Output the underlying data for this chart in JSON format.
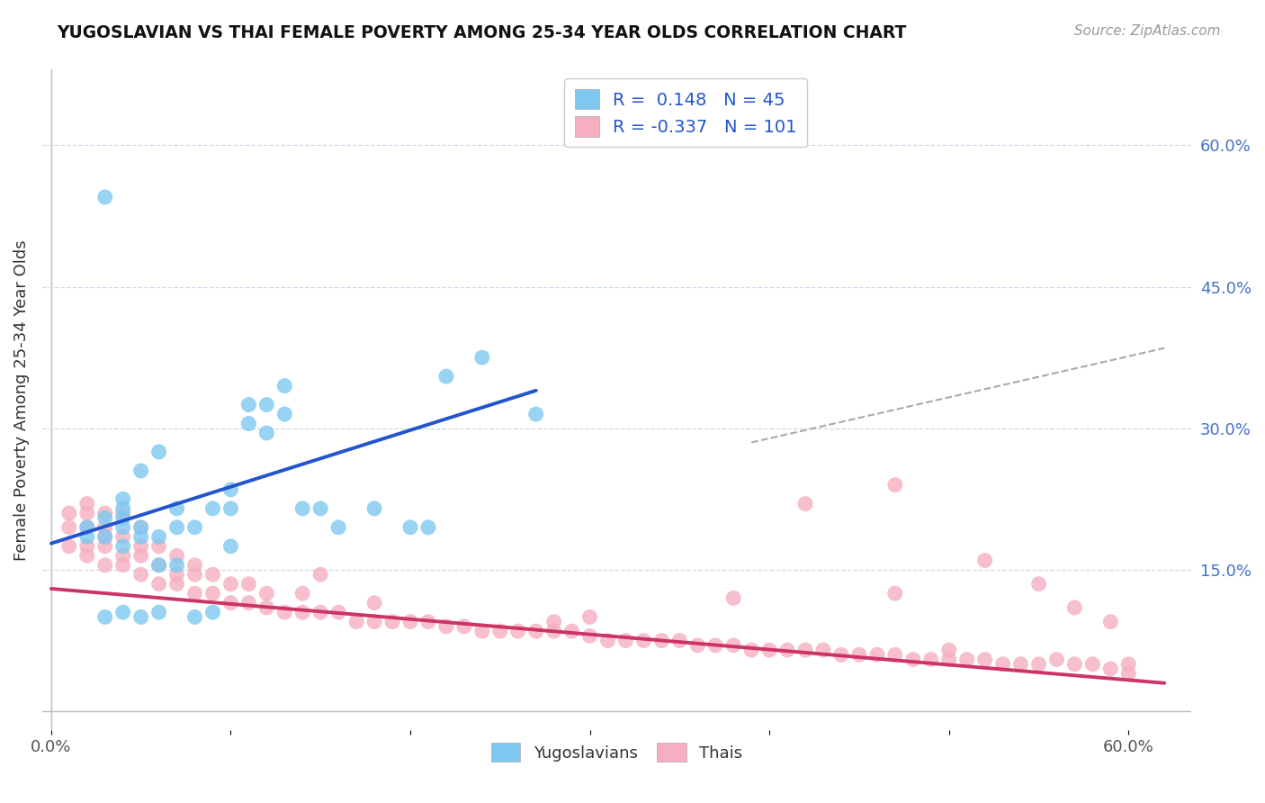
{
  "title": "YUGOSLAVIAN VS THAI FEMALE POVERTY AMONG 25-34 YEAR OLDS CORRELATION CHART",
  "source": "Source: ZipAtlas.com",
  "ylabel": "Female Poverty Among 25-34 Year Olds",
  "y_ticks_right": [
    0.15,
    0.3,
    0.45,
    0.6
  ],
  "y_tick_labels_right": [
    "15.0%",
    "30.0%",
    "45.0%",
    "60.0%"
  ],
  "xlim": [
    -0.005,
    0.635
  ],
  "ylim": [
    -0.02,
    0.68
  ],
  "legend_R1": "0.148",
  "legend_N1": "45",
  "legend_R2": "-0.337",
  "legend_N2": "101",
  "yug_color": "#7ec8f0",
  "thai_color": "#f5afc0",
  "yug_line_color": "#2255cc",
  "thai_line_color": "#cc3366",
  "dashed_line_color": "#aaaaaa",
  "bg_color": "#ffffff",
  "grid_color": "#c8d8e8",
  "yug_line_x": [
    0.0,
    0.27
  ],
  "yug_line_y": [
    0.178,
    0.34
  ],
  "thai_line_x": [
    0.0,
    0.62
  ],
  "thai_line_y": [
    0.13,
    0.03
  ],
  "dash_line_x": [
    0.39,
    0.62
  ],
  "dash_line_y": [
    0.285,
    0.385
  ],
  "yug_points_x": [
    0.02,
    0.02,
    0.03,
    0.03,
    0.03,
    0.04,
    0.04,
    0.04,
    0.04,
    0.04,
    0.05,
    0.05,
    0.05,
    0.06,
    0.06,
    0.07,
    0.07,
    0.08,
    0.09,
    0.1,
    0.1,
    0.1,
    0.11,
    0.11,
    0.12,
    0.12,
    0.13,
    0.13,
    0.14,
    0.15,
    0.16,
    0.18,
    0.2,
    0.21,
    0.22,
    0.24,
    0.27,
    0.03,
    0.04,
    0.05,
    0.06,
    0.08,
    0.09,
    0.06,
    0.07
  ],
  "yug_points_y": [
    0.185,
    0.195,
    0.185,
    0.205,
    0.545,
    0.175,
    0.195,
    0.205,
    0.215,
    0.225,
    0.185,
    0.195,
    0.255,
    0.185,
    0.275,
    0.195,
    0.215,
    0.195,
    0.215,
    0.175,
    0.215,
    0.235,
    0.305,
    0.325,
    0.295,
    0.325,
    0.315,
    0.345,
    0.215,
    0.215,
    0.195,
    0.215,
    0.195,
    0.195,
    0.355,
    0.375,
    0.315,
    0.1,
    0.105,
    0.1,
    0.105,
    0.1,
    0.105,
    0.155,
    0.155
  ],
  "thai_points_x": [
    0.01,
    0.01,
    0.01,
    0.02,
    0.02,
    0.02,
    0.02,
    0.02,
    0.03,
    0.03,
    0.03,
    0.03,
    0.03,
    0.04,
    0.04,
    0.04,
    0.04,
    0.05,
    0.05,
    0.05,
    0.05,
    0.06,
    0.06,
    0.06,
    0.07,
    0.07,
    0.07,
    0.08,
    0.08,
    0.08,
    0.09,
    0.09,
    0.1,
    0.1,
    0.11,
    0.11,
    0.12,
    0.12,
    0.13,
    0.14,
    0.14,
    0.15,
    0.15,
    0.16,
    0.17,
    0.18,
    0.18,
    0.19,
    0.2,
    0.21,
    0.22,
    0.23,
    0.24,
    0.25,
    0.26,
    0.27,
    0.28,
    0.28,
    0.29,
    0.3,
    0.3,
    0.31,
    0.32,
    0.33,
    0.34,
    0.35,
    0.36,
    0.37,
    0.38,
    0.39,
    0.4,
    0.41,
    0.42,
    0.43,
    0.44,
    0.45,
    0.46,
    0.47,
    0.48,
    0.49,
    0.5,
    0.5,
    0.51,
    0.52,
    0.53,
    0.54,
    0.55,
    0.56,
    0.57,
    0.58,
    0.59,
    0.6,
    0.47,
    0.42,
    0.52,
    0.55,
    0.57,
    0.59,
    0.47,
    0.38,
    0.6
  ],
  "thai_points_y": [
    0.175,
    0.195,
    0.21,
    0.165,
    0.175,
    0.195,
    0.21,
    0.22,
    0.155,
    0.175,
    0.185,
    0.195,
    0.21,
    0.155,
    0.165,
    0.185,
    0.21,
    0.145,
    0.165,
    0.175,
    0.195,
    0.135,
    0.155,
    0.175,
    0.135,
    0.145,
    0.165,
    0.125,
    0.145,
    0.155,
    0.125,
    0.145,
    0.115,
    0.135,
    0.115,
    0.135,
    0.11,
    0.125,
    0.105,
    0.105,
    0.125,
    0.105,
    0.145,
    0.105,
    0.095,
    0.095,
    0.115,
    0.095,
    0.095,
    0.095,
    0.09,
    0.09,
    0.085,
    0.085,
    0.085,
    0.085,
    0.085,
    0.095,
    0.085,
    0.08,
    0.1,
    0.075,
    0.075,
    0.075,
    0.075,
    0.075,
    0.07,
    0.07,
    0.07,
    0.065,
    0.065,
    0.065,
    0.065,
    0.065,
    0.06,
    0.06,
    0.06,
    0.06,
    0.055,
    0.055,
    0.055,
    0.065,
    0.055,
    0.055,
    0.05,
    0.05,
    0.05,
    0.055,
    0.05,
    0.05,
    0.045,
    0.04,
    0.24,
    0.22,
    0.16,
    0.135,
    0.11,
    0.095,
    0.125,
    0.12,
    0.05
  ]
}
